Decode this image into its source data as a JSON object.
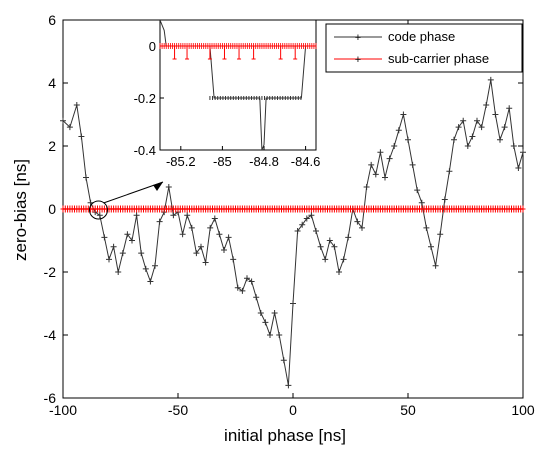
{
  "chart_data": {
    "type": "line",
    "title": "",
    "xlabel": "initial phase [ns]",
    "ylabel": "zero-bias [ns]",
    "xlim": [
      -100,
      100
    ],
    "ylim": [
      -6,
      6
    ],
    "x_ticks": [
      "-100",
      "-50",
      "0",
      "50",
      "100"
    ],
    "y_ticks": [
      "6",
      "4",
      "2",
      "0",
      "-2",
      "-4",
      "-6"
    ],
    "grid": false,
    "legend_position": "top-right",
    "colors": {
      "code_phase": "#333333",
      "sub_carrier_phase": "#ff0000"
    },
    "series": [
      {
        "name": "code phase",
        "x": [
          -100,
          -97,
          -94,
          -92,
          -90,
          -88,
          -86,
          -84,
          -82,
          -80,
          -78,
          -76,
          -74,
          -72,
          -70,
          -68,
          -66,
          -64,
          -62,
          -60,
          -58,
          -56,
          -54,
          -52,
          -50,
          -48,
          -46,
          -44,
          -42,
          -40,
          -38,
          -36,
          -34,
          -32,
          -30,
          -28,
          -26,
          -24,
          -22,
          -20,
          -18,
          -16,
          -14,
          -12,
          -10,
          -8,
          -6,
          -4,
          -2,
          0,
          2,
          4,
          6,
          8,
          10,
          12,
          14,
          16,
          18,
          20,
          22,
          24,
          26,
          28,
          30,
          32,
          34,
          36,
          38,
          40,
          42,
          44,
          46,
          48,
          50,
          52,
          54,
          56,
          58,
          60,
          62,
          64,
          66,
          68,
          70,
          72,
          74,
          76,
          78,
          80,
          82,
          84,
          86,
          88,
          90,
          92,
          94,
          96,
          98,
          100
        ],
        "y": [
          2.8,
          2.6,
          3.3,
          2.3,
          1.0,
          0.2,
          -0.1,
          -0.2,
          -0.9,
          -1.6,
          -1.2,
          -2.0,
          -1.4,
          -0.8,
          -1.0,
          -0.2,
          -1.4,
          -1.9,
          -2.3,
          -1.8,
          -0.4,
          -0.1,
          0.7,
          -0.2,
          -0.1,
          -0.8,
          -0.2,
          -0.6,
          -1.4,
          -1.2,
          -1.7,
          -0.6,
          -0.3,
          -0.8,
          -1.3,
          -0.9,
          -1.6,
          -2.5,
          -2.6,
          -2.2,
          -2.3,
          -2.8,
          -3.3,
          -3.6,
          -4.0,
          -3.3,
          -4.0,
          -4.8,
          -5.6,
          -3.0,
          -0.7,
          -0.5,
          -0.3,
          -0.2,
          -0.7,
          -1.2,
          -1.6,
          -1.0,
          -1.2,
          -2.0,
          -1.6,
          -0.9,
          0.0,
          -0.4,
          -0.6,
          0.7,
          1.4,
          1.1,
          1.8,
          1.0,
          1.6,
          2.0,
          2.5,
          3.0,
          2.2,
          1.4,
          0.6,
          0.2,
          -0.6,
          -1.2,
          -1.8,
          -0.8,
          0.3,
          1.2,
          2.2,
          2.6,
          2.8,
          2.0,
          2.3,
          2.8,
          2.6,
          3.3,
          4.1,
          3.0,
          2.2,
          2.6,
          3.2,
          2.0,
          1.3,
          1.8
        ]
      },
      {
        "name": "sub-carrier phase",
        "x": [
          -100,
          -80,
          -60,
          -40,
          -20,
          0,
          20,
          40,
          60,
          80,
          100
        ],
        "y": [
          0,
          0,
          0,
          0,
          0,
          0,
          0,
          0,
          0,
          0,
          0
        ]
      }
    ],
    "inset": {
      "xlim": [
        -85.3,
        -84.55
      ],
      "ylim": [
        -0.4,
        0.1
      ],
      "x_ticks": [
        "-85.2",
        "-85",
        "-84.8",
        "-84.6"
      ],
      "y_ticks": [
        "0",
        "-0.2",
        "-0.4"
      ],
      "code_phase": {
        "x": [
          -85.3,
          -85.28,
          -85.27,
          -85.2,
          -85.12,
          -85.06,
          -85.04,
          -84.9,
          -84.82,
          -84.81,
          -84.8,
          -84.79,
          -84.78,
          -84.7,
          -84.62,
          -84.6,
          -84.57,
          -84.55
        ],
        "y": [
          0.1,
          0.06,
          0,
          0,
          0,
          0,
          -0.2,
          -0.2,
          -0.2,
          -0.4,
          -0.38,
          -0.2,
          -0.2,
          -0.2,
          -0.2,
          0,
          0,
          0
        ]
      },
      "sub_carrier_phase": {
        "x": [
          -85.3,
          -85.2,
          -85.1,
          -85.0,
          -84.9,
          -84.8,
          -84.7,
          -84.6,
          -84.55
        ],
        "y": [
          0,
          0,
          0,
          0,
          0,
          0,
          0,
          0,
          0
        ],
        "dip_x": [
          -85.23,
          -85.17,
          -85.06,
          -84.99,
          -84.92,
          -84.85,
          -84.72,
          -84.65
        ],
        "dip_y": -0.05
      }
    }
  }
}
